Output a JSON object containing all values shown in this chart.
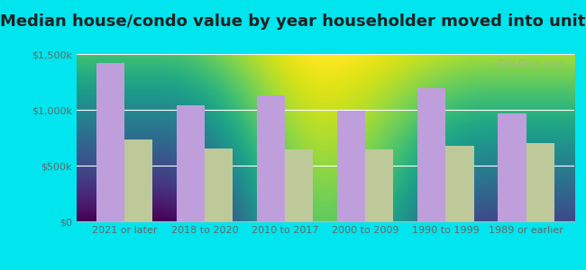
{
  "title": "Median house/condo value by year householder moved into unit",
  "categories": [
    "2021 or later",
    "2018 to 2020",
    "2010 to 2017",
    "2000 to 2009",
    "1990 to 1999",
    "1989 or earlier"
  ],
  "poway_values": [
    1420000,
    1040000,
    1130000,
    990000,
    1190000,
    970000
  ],
  "california_values": [
    730000,
    655000,
    645000,
    645000,
    680000,
    700000
  ],
  "poway_color": "#bf9fdb",
  "california_color": "#bec99a",
  "background_color": "#00e5ee",
  "plot_bg_top": "#eaf5f0",
  "plot_bg_bottom": "#d0ecd8",
  "ylim": [
    0,
    1500000
  ],
  "yticks": [
    0,
    500000,
    1000000,
    1500000
  ],
  "ytick_labels": [
    "$0",
    "$500k",
    "$1,000k",
    "$1,500k"
  ],
  "watermark": "City-Data.com",
  "bar_width": 0.35,
  "title_fontsize": 13,
  "tick_fontsize": 8,
  "legend_fontsize": 9
}
